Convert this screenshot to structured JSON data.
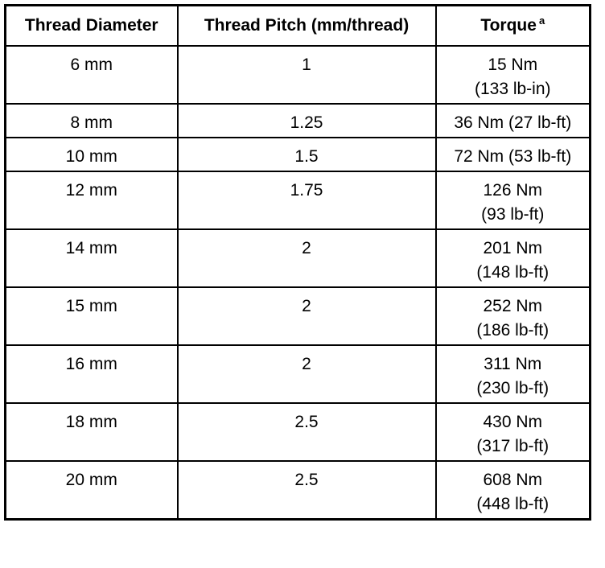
{
  "table": {
    "header": [
      "Thread Diameter",
      "Thread Pitch (mm/thread)",
      "Torque"
    ],
    "footnote_marker": "a",
    "rows": [
      [
        "6 mm",
        "1",
        [
          "15 Nm",
          "(133 lb-in)"
        ]
      ],
      [
        "8 mm",
        "1.25",
        [
          "36 Nm (27 lb-ft)"
        ]
      ],
      [
        "10 mm",
        "1.5",
        [
          "72 Nm (53 lb-ft)"
        ]
      ],
      [
        "12 mm",
        "1.75",
        [
          "126 Nm",
          "(93 lb-ft)"
        ]
      ],
      [
        "14 mm",
        "2",
        [
          "201 Nm",
          "(148 lb-ft)"
        ]
      ],
      [
        "15 mm",
        "2",
        [
          "252 Nm",
          "(186 lb-ft)"
        ]
      ],
      [
        "16 mm",
        "2",
        [
          "311 Nm",
          "(230 lb-ft)"
        ]
      ],
      [
        "18 mm",
        "2.5",
        [
          "430 Nm",
          "(317 lb-ft)"
        ]
      ],
      [
        "20 mm",
        "2.5",
        [
          "608 Nm",
          "(448 lb-ft)"
        ]
      ]
    ]
  }
}
